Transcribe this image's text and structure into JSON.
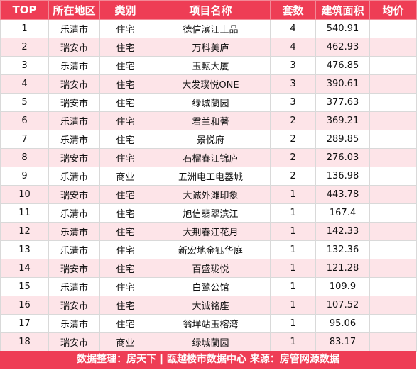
{
  "table": {
    "headers": [
      "TOP",
      "所在地区",
      "类别",
      "项目名称",
      "套数",
      "建筑面积",
      "均价"
    ],
    "rows": [
      [
        "1",
        "乐清市",
        "住宅",
        "德信滨江上品",
        "4",
        "540.91",
        ""
      ],
      [
        "2",
        "瑞安市",
        "住宅",
        "万科美庐",
        "4",
        "462.93",
        ""
      ],
      [
        "3",
        "乐清市",
        "住宅",
        "玉甄大厦",
        "3",
        "476.85",
        ""
      ],
      [
        "4",
        "瑞安市",
        "住宅",
        "大发璞悦ONE",
        "3",
        "390.61",
        ""
      ],
      [
        "5",
        "瑞安市",
        "住宅",
        "绿城蘭园",
        "3",
        "377.63",
        ""
      ],
      [
        "6",
        "乐清市",
        "住宅",
        "君兰和著",
        "2",
        "369.21",
        ""
      ],
      [
        "7",
        "乐清市",
        "住宅",
        "景悦府",
        "2",
        "289.85",
        ""
      ],
      [
        "8",
        "瑞安市",
        "住宅",
        "石榴春江锦庐",
        "2",
        "276.03",
        ""
      ],
      [
        "9",
        "乐清市",
        "商业",
        "五洲电工电器城",
        "2",
        "136.98",
        ""
      ],
      [
        "10",
        "瑞安市",
        "住宅",
        "大诚外滩印象",
        "1",
        "443.78",
        ""
      ],
      [
        "11",
        "乐清市",
        "住宅",
        "旭信翡翠滨江",
        "1",
        "167.4",
        ""
      ],
      [
        "12",
        "乐清市",
        "住宅",
        "大荆春江花月",
        "1",
        "142.33",
        ""
      ],
      [
        "13",
        "乐清市",
        "住宅",
        "新宏地金钰华庭",
        "1",
        "132.36",
        ""
      ],
      [
        "14",
        "瑞安市",
        "住宅",
        "百盛珑悦",
        "1",
        "121.28",
        ""
      ],
      [
        "15",
        "乐清市",
        "住宅",
        "白鹭公馆",
        "1",
        "109.9",
        ""
      ],
      [
        "16",
        "瑞安市",
        "住宅",
        "大诚铭座",
        "1",
        "107.52",
        ""
      ],
      [
        "17",
        "乐清市",
        "住宅",
        "翁垟站玉榕湾",
        "1",
        "95.06",
        ""
      ],
      [
        "18",
        "瑞安市",
        "商业",
        "绿城蘭园",
        "1",
        "83.17",
        ""
      ]
    ]
  },
  "footer": {
    "text": "数据整理：房天下 | 瓯越楼市数据中心   来源：房管网源数据"
  },
  "colors": {
    "header_bg": "#ee3d55",
    "stripe_bg": "#fde4e8",
    "footer_bg": "#ee3d55"
  }
}
